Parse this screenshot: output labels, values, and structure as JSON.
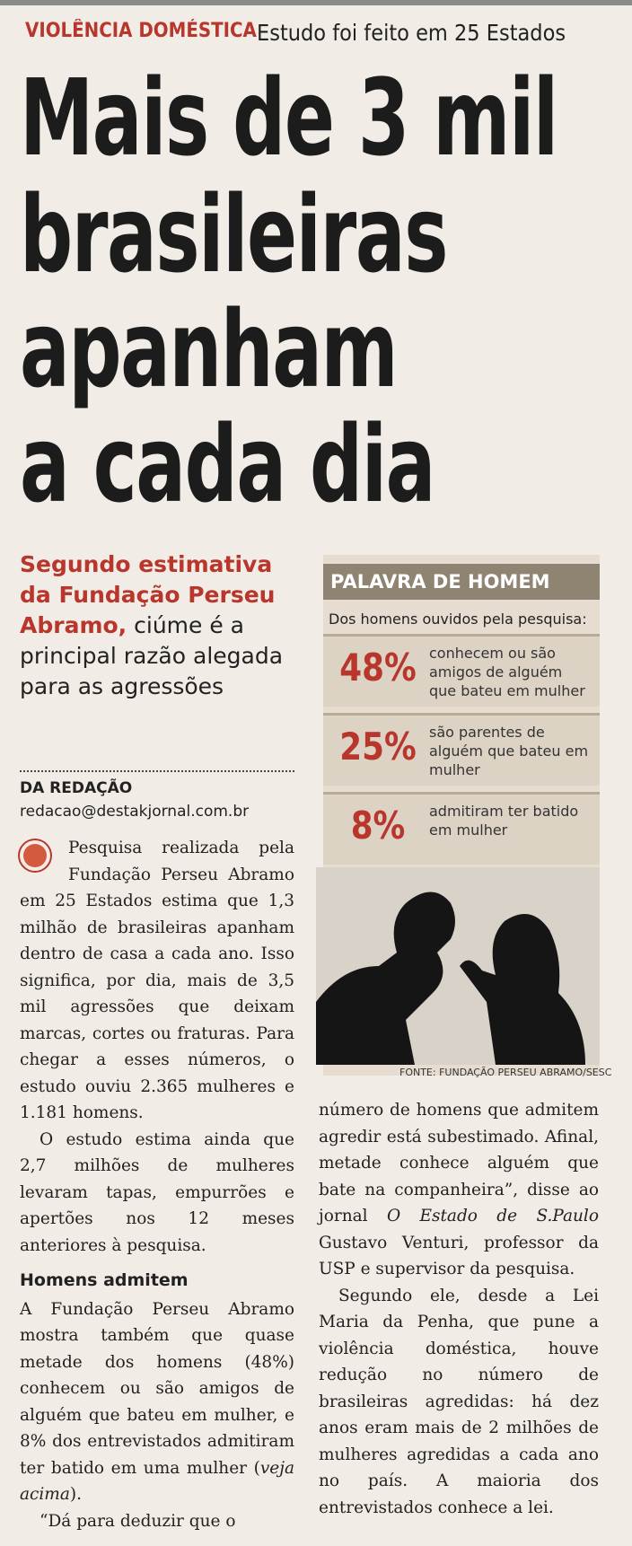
{
  "header": {
    "kicker": "VIOLÊNCIA DOMÉSTICA",
    "subtitle": "Estudo foi feito em 25 Estados"
  },
  "headline": {
    "lines": [
      "Mais de 3 mil",
      "brasileiras",
      "apanham",
      "a cada dia"
    ]
  },
  "deck": {
    "lead": "Segundo estimativa da Fundação Perseu Abramo,",
    "rest": "ciúme é a principal razão alegada para as agressões"
  },
  "byline": {
    "name": "DA REDAÇÃO",
    "email": "redacao@destakjornal.com.br"
  },
  "body": {
    "p1": "Pesquisa realizada pela Fundação Perseu Abramo em 25 Estados estima que 1,3 milhão de brasileiras apanham dentro de casa a cada ano. Isso significa, por dia, mais de 3,5 mil agressões que deixam marcas, cortes ou fraturas. Para chegar a esses números, o estudo ouviu 2.365 mulheres e 1.181 homens.",
    "p2": "O estudo estima ainda que 2,7 milhões de mulheres levaram tapas, empurrões e apertões nos 12 meses anteriores à pesquisa.",
    "subhead": "Homens admitem",
    "p3": {
      "before": "A Fundação Perseu Abramo mostra também que quase metade dos homens (48%) conhecem ou são amigos de alguém que bateu em mulher, e 8% dos entrevistados admitiram ter batido em uma mulher (",
      "italic": "veja acima",
      "after": ")."
    },
    "p4": "“Dá para deduzir que o",
    "p5": {
      "before": "número de homens que admitem agredir está subestimado. Afinal, metade conhece alguém que bate na companheira”, disse ao jornal ",
      "italic": "O Estado de S.Paulo",
      "after": " Gustavo Venturi, professor da USP e supervisor da pesquisa."
    },
    "p6": "Segundo ele, desde a Lei Maria da Penha, que pune a violência doméstica, houve redução no número de brasileiras agredidas: há dez anos eram mais de 2 milhões de mulheres agredidas a cada ano no país. A maioria dos entrevistados conhece a lei."
  },
  "sidebar": {
    "title": "PALAVRA DE HOMEM",
    "intro": "Dos homens ouvidos pela pesquisa:",
    "items": [
      {
        "percent": "48%",
        "text": "conhecem ou são amigos de alguém que bateu em mulher"
      },
      {
        "percent": "25%",
        "text": "são parentes de alguém que bateu em mulher"
      },
      {
        "percent": "8%",
        "text": "admitiram ter batido em mulher"
      }
    ],
    "credit": "FONTE: FUNDAÇÃO PERSEU ABRAMO/SESC"
  }
}
